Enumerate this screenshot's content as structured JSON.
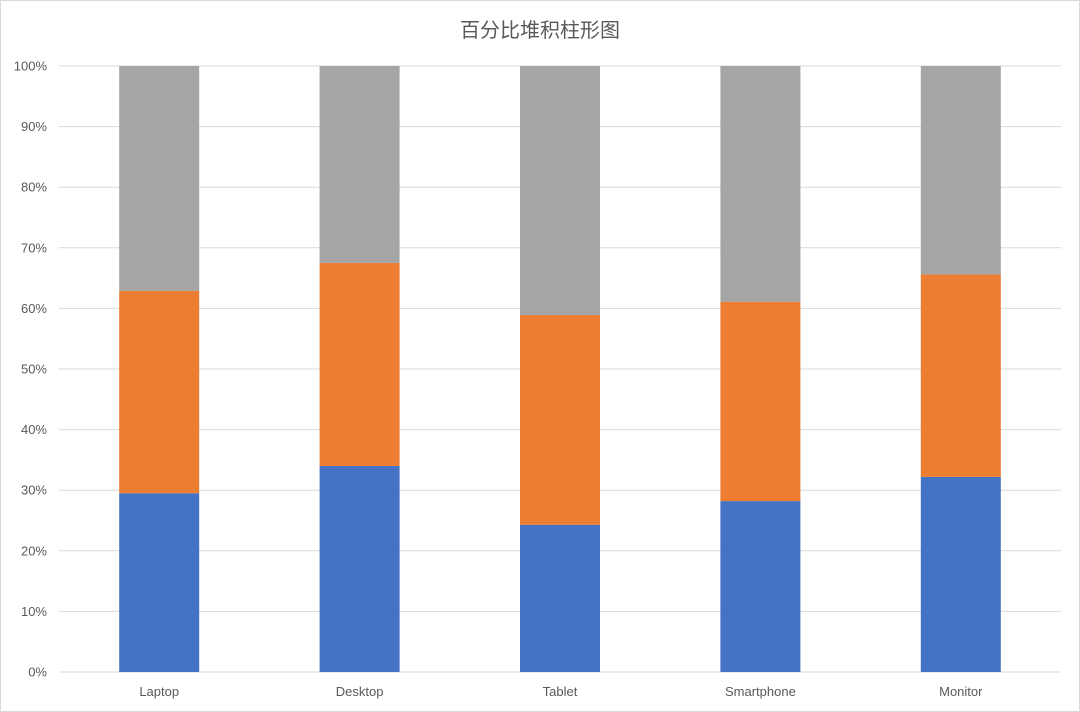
{
  "chart_data": {
    "type": "bar",
    "stacked": "percent",
    "title": "百分比堆积柱形图",
    "xlabel": "",
    "ylabel": "",
    "categories": [
      "Laptop",
      "Desktop",
      "Tablet",
      "Smartphone",
      "Monitor"
    ],
    "series": [
      {
        "color": "#4472c4",
        "values": [
          29.5,
          34.0,
          24.3,
          28.2,
          32.2
        ]
      },
      {
        "color": "#ed7d31",
        "values": [
          33.4,
          33.5,
          34.6,
          32.9,
          33.4
        ]
      },
      {
        "color": "#a5a5a5",
        "values": [
          37.1,
          32.5,
          41.1,
          38.9,
          34.4
        ]
      }
    ],
    "ylim": [
      0,
      100
    ],
    "yticks": [
      0,
      10,
      20,
      30,
      40,
      50,
      60,
      70,
      80,
      90,
      100
    ],
    "ytick_labels": [
      "0%",
      "10%",
      "20%",
      "30%",
      "40%",
      "50%",
      "60%",
      "70%",
      "80%",
      "90%",
      "100%"
    ],
    "grid": true,
    "legend": "none"
  }
}
